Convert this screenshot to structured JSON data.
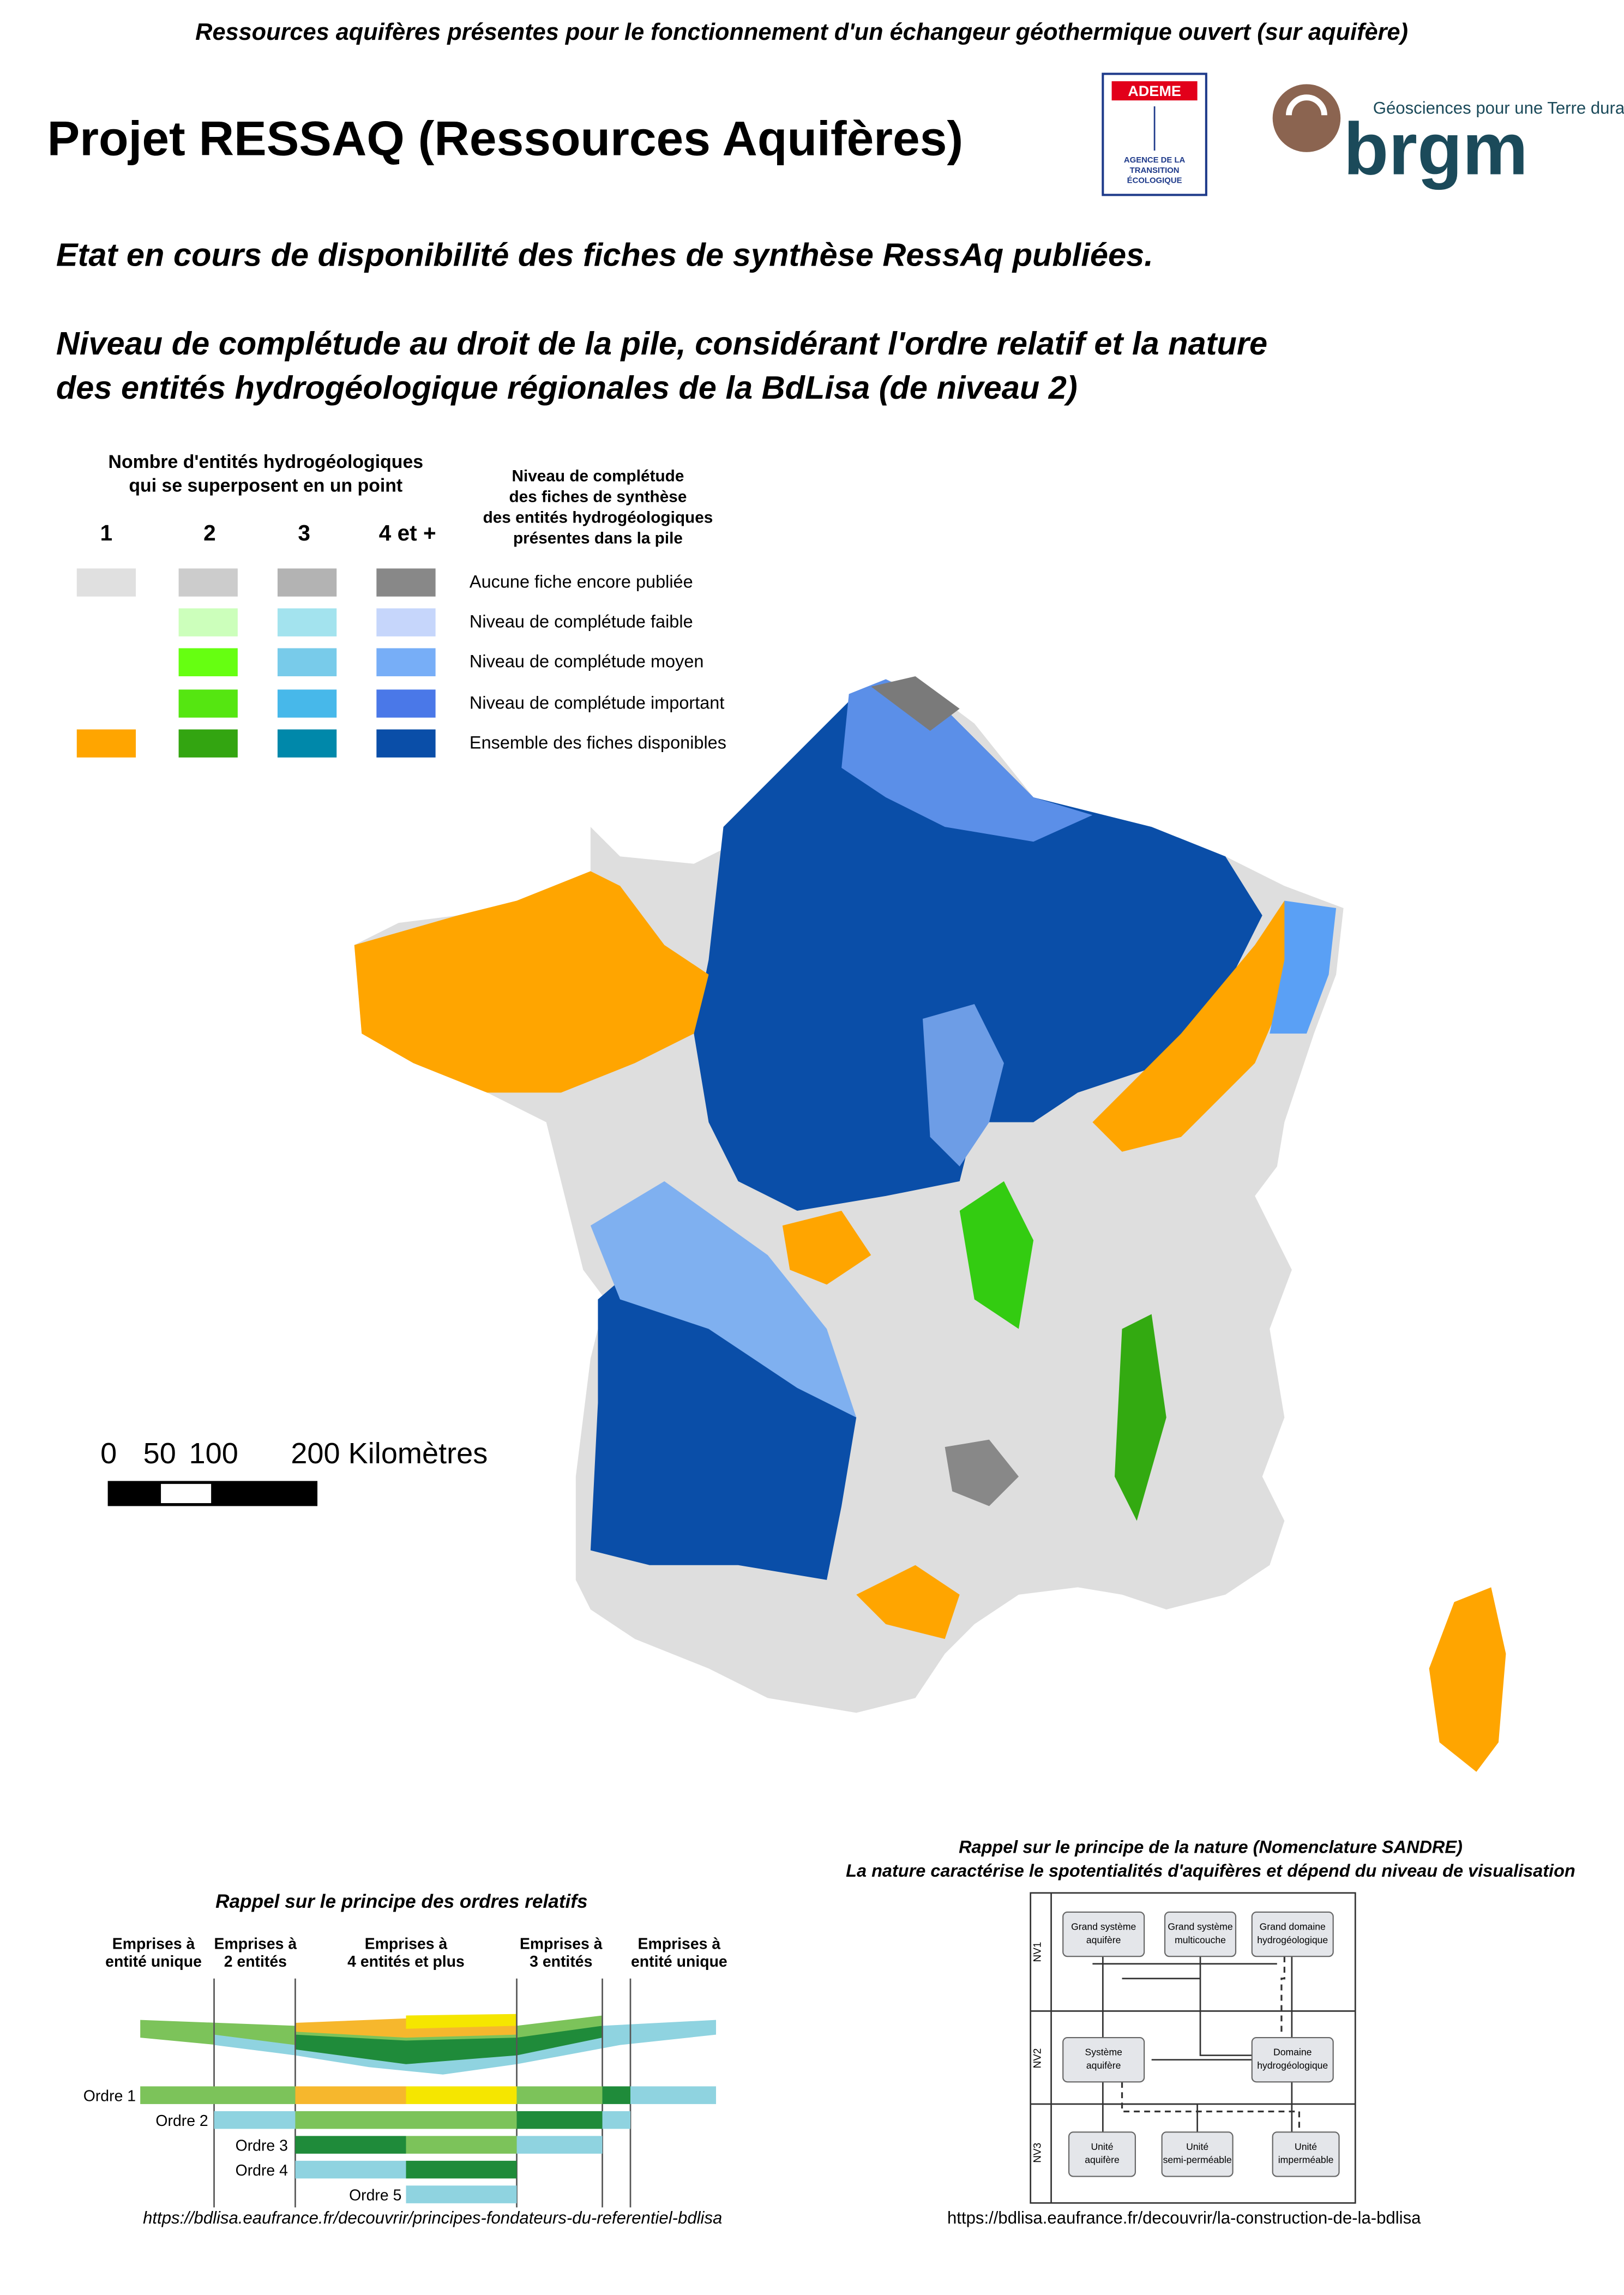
{
  "header": {
    "subtitle": "Ressources aquifères présentes pour le fonctionnement d'un échangeur géothermique ouvert (sur aquifère)",
    "title": "Projet RESSAQ (Ressources Aquifères)",
    "ademe": "ADEME",
    "ademe_text": [
      "AGENCE DE LA",
      "TRANSITION",
      "ÉCOLOGIQUE"
    ],
    "brgm_tagline": "Géosciences pour une Terre durable",
    "brgm": "brgm"
  },
  "heading": {
    "line1": "Etat en cours de disponibilité des fiches de synthèse RessAq publiées.",
    "line2": "Niveau de complétude au droit de la pile, considérant l'ordre relatif et la nature",
    "line3": "des entités hydrogéologique régionales de la BdLisa (de niveau 2)"
  },
  "legend": {
    "count_title": [
      "Nombre d'entités hydrogéologiques",
      "qui se superposent en un point"
    ],
    "columns": [
      "1",
      "2",
      "3",
      "4 et +"
    ],
    "level_title": [
      "Niveau de complétude",
      "des fiches de synthèse",
      "des entités hydrogéologiques",
      "présentes dans la pile"
    ],
    "levels": [
      "Aucune fiche encore publiée",
      "Niveau de complétude faible",
      "Niveau de complétude moyen",
      "Niveau de complétude important",
      "Ensemble des fiches disponibles"
    ]
  },
  "scale": {
    "labels": [
      "0",
      "50",
      "100",
      "200 Kilomètres"
    ]
  },
  "order_panel": {
    "title": "Rappel sur le principe des ordres relatifs",
    "columns": [
      [
        "Emprises à",
        "entité unique"
      ],
      [
        "Emprises à",
        "2 entités"
      ],
      [
        "Emprises à",
        "4 entités et plus"
      ],
      [
        "Emprises à",
        "3 entités"
      ],
      [
        "Emprises à",
        "entité unique"
      ]
    ],
    "orders": [
      "Ordre 1",
      "Ordre 2",
      "Ordre 3",
      "Ordre 4",
      "Ordre 5"
    ],
    "url": "https://bdlisa.eaufrance.fr/decouvrir/principes-fondateurs-du-referentiel-bdlisa"
  },
  "nature_panel": {
    "title": [
      "Rappel sur le principe de la nature (Nomenclature SANDRE)",
      "La nature caractérise le spotentialités d'aquifères et dépend du niveau de visualisation"
    ],
    "levels": [
      "NV1",
      "NV2",
      "NV3"
    ],
    "nodes": [
      [
        "Grand système",
        "aquifère"
      ],
      [
        "Grand système",
        "multicouche"
      ],
      [
        "Grand domaine",
        "hydrogéologique"
      ],
      [
        "Système",
        "aquifère"
      ],
      [
        "Domaine",
        "hydrogéologique"
      ],
      [
        "Unité",
        "aquifère"
      ],
      [
        "Unité",
        "semi-perméable"
      ],
      [
        "Unité",
        "imperméable"
      ]
    ],
    "url": "https://bdlisa.eaufrance.fr/decouvrir/la-construction-de-la-bdlisa"
  }
}
